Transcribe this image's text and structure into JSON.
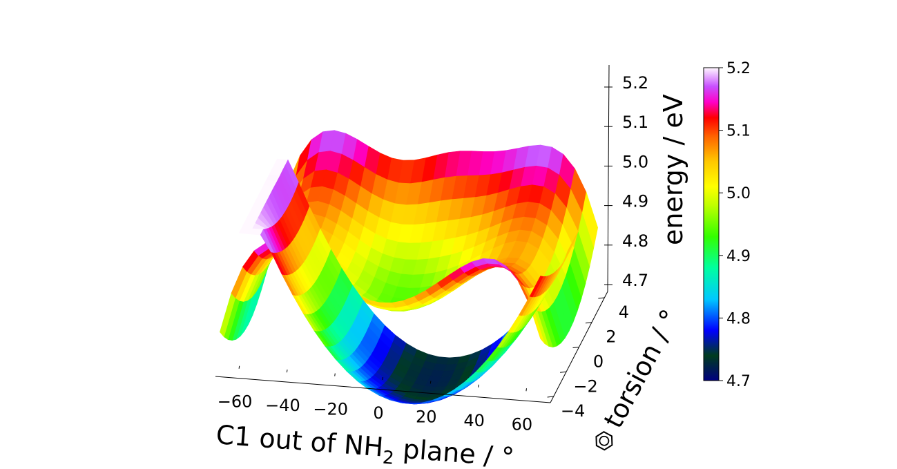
{
  "chart_data": {
    "type": "surface3d",
    "x": {
      "label": "C1 out of NH",
      "label_sub": "2",
      "label_suffix": " plane / °",
      "ticks": [
        -60,
        -40,
        -20,
        0,
        20,
        40,
        60
      ],
      "tick_labels": [
        "−60",
        "−40",
        "−20",
        "0",
        "20",
        "40",
        "60"
      ],
      "range": [
        -70,
        70
      ]
    },
    "y": {
      "label": "torsion / °",
      "label_prefix_icon": "benzene-ring-icon",
      "ticks": [
        -4,
        -2,
        0,
        2,
        4
      ],
      "tick_labels": [
        "−4",
        "−2",
        "0",
        "2",
        "4"
      ],
      "range": [
        -4.5,
        4.5
      ]
    },
    "z": {
      "label": "energy / eV",
      "ticks": [
        4.7,
        4.8,
        4.9,
        5.0,
        5.1,
        5.2
      ],
      "tick_labels": [
        "4.7",
        "4.8",
        "4.9",
        "5.0",
        "5.1",
        "5.2"
      ],
      "range": [
        4.69,
        5.22
      ]
    },
    "colorbar": {
      "ticks": [
        4.7,
        4.8,
        4.9,
        5.0,
        5.1,
        5.2
      ],
      "tick_labels": [
        "4.7",
        "4.8",
        "4.9",
        "5.0",
        "5.1",
        "5.2"
      ],
      "range": [
        4.7,
        5.2
      ],
      "colormap": "gist_ncar"
    },
    "surfaces": [
      {
        "name": "lower",
        "minimum": {
          "x": 10,
          "y": 0,
          "z": 4.72
        },
        "edge_max": 5.2
      },
      {
        "name": "upper",
        "saddle": {
          "x": 0,
          "y": 0,
          "z": 4.93
        },
        "ridge_max": 5.05,
        "edge_max": 5.2
      }
    ]
  }
}
